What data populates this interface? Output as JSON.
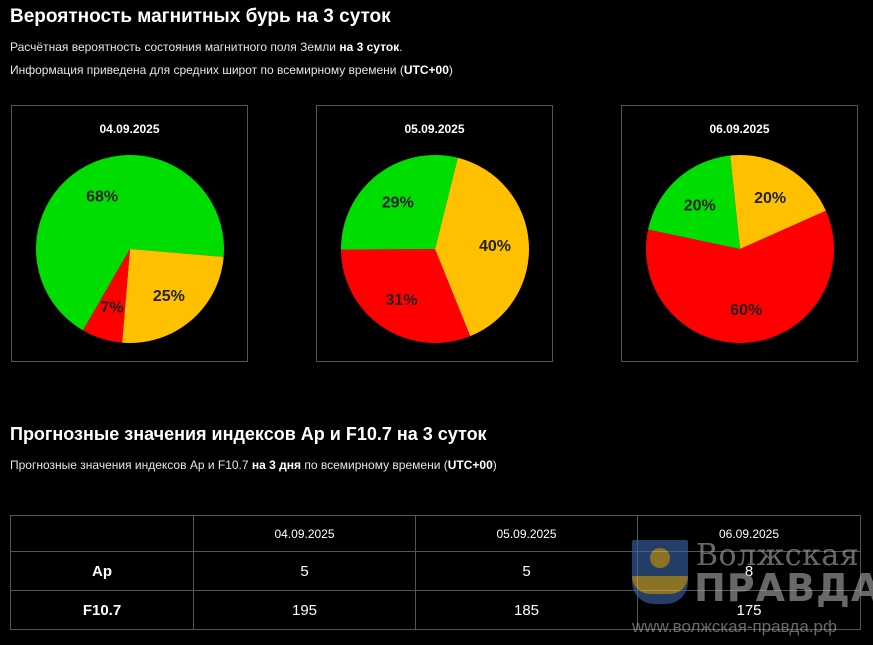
{
  "section1": {
    "title": "Вероятность магнитных бурь на 3 суток",
    "line1_pre": "Расчётная вероятность состояния магнитного поля Земли ",
    "line1_bold": "на 3 суток",
    "line1_post": ".",
    "line2_pre": "Информация приведена для средних широт по всемирному времени (",
    "line2_bold": "UTC+00",
    "line2_post": ")"
  },
  "colors": {
    "green": "#00dd00",
    "orange": "#ffc000",
    "red": "#ff0000"
  },
  "chart_data": [
    {
      "type": "pie",
      "title": "04.09.2025",
      "slices": [
        {
          "label": "68%",
          "value": 68,
          "color": "#00dd00"
        },
        {
          "label": "25%",
          "value": 25,
          "color": "#ffc000"
        },
        {
          "label": "7%",
          "value": 7,
          "color": "#ff0000"
        }
      ]
    },
    {
      "type": "pie",
      "title": "05.09.2025",
      "slices": [
        {
          "label": "40%",
          "value": 40,
          "color": "#ffc000"
        },
        {
          "label": "31%",
          "value": 31,
          "color": "#ff0000"
        },
        {
          "label": "29%",
          "value": 29,
          "color": "#00dd00"
        }
      ]
    },
    {
      "type": "pie",
      "title": "06.09.2025",
      "slices": [
        {
          "label": "20%",
          "value": 20,
          "color": "#ffc000"
        },
        {
          "label": "60%",
          "value": 60,
          "color": "#ff0000"
        },
        {
          "label": "20%",
          "value": 20,
          "color": "#00dd00"
        }
      ]
    }
  ],
  "section2": {
    "title": "Прогнозные значения индексов Ap и F10.7 на 3 суток",
    "line_pre": "Прогнозные значения индексов Ap и F10.7 ",
    "line_bold": "на 3 дня",
    "line_mid": " по всемирному времени (",
    "line_bold2": "UTC+00",
    "line_post": ")"
  },
  "table": {
    "dates": [
      "04.09.2025",
      "05.09.2025",
      "06.09.2025"
    ],
    "rows": [
      {
        "label": "Ap",
        "values": [
          "5",
          "5",
          "8"
        ]
      },
      {
        "label": "F10.7",
        "values": [
          "195",
          "185",
          "175"
        ]
      }
    ]
  },
  "watermark": {
    "line1": "Волжская",
    "line2": "ПРАВДА",
    "line3": "www.волжская-правда.рф"
  }
}
